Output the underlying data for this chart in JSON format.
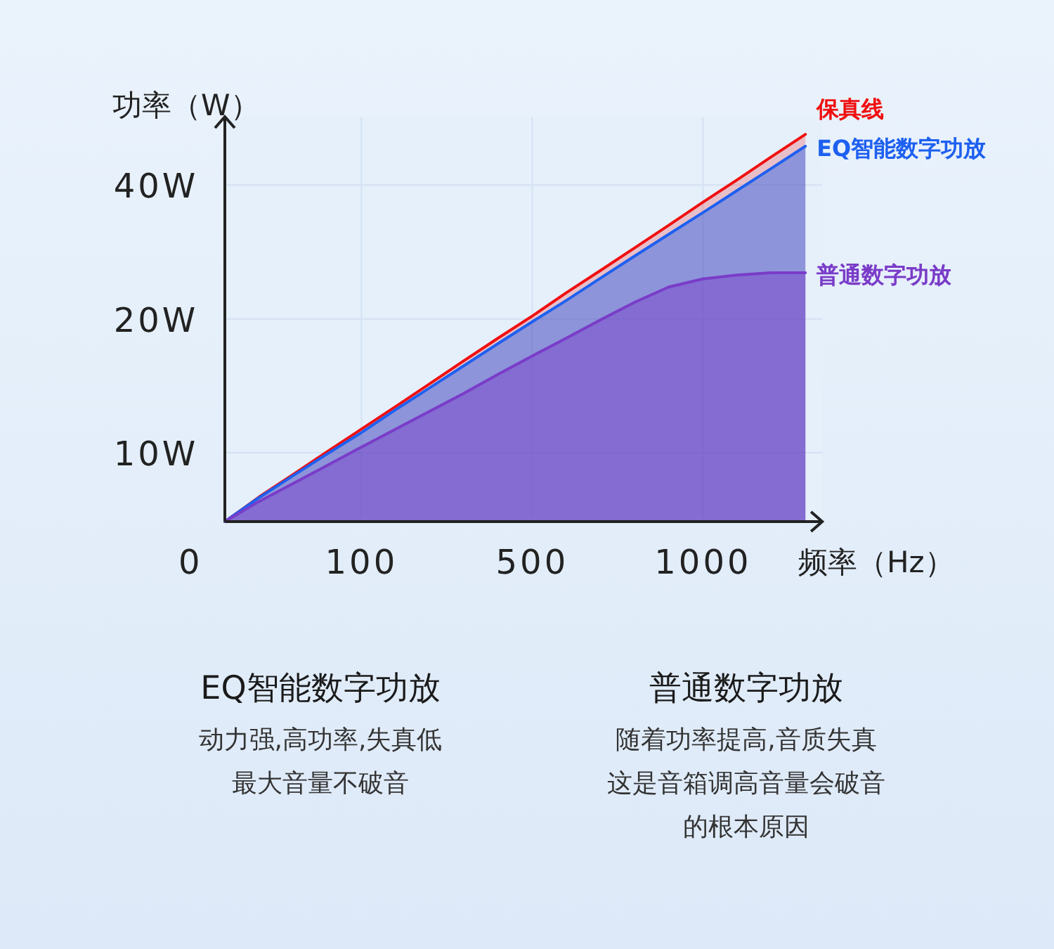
{
  "chart_data": {
    "type": "area",
    "xlabel": "频率（Hz）",
    "ylabel": "功率（W）",
    "categories": [
      "0",
      null,
      null,
      null,
      null,
      "100",
      null,
      null,
      null,
      null,
      "500",
      null,
      null,
      null,
      null,
      "1000",
      null,
      null,
      null
    ],
    "log": "y",
    "ylim": [
      7,
      57
    ],
    "yticks": [
      {
        "value": 10,
        "label": "10W"
      },
      {
        "value": 20,
        "label": "20W"
      },
      {
        "value": 40,
        "label": "40W"
      }
    ],
    "grid": true,
    "series": [
      {
        "name": "保真线",
        "color": "#f01010",
        "values": [
          null,
          7,
          7.95,
          8.94,
          10.06,
          11.3,
          12.7,
          14.3,
          16.1,
          18.1,
          20.3,
          22.9,
          25.7,
          28.9,
          32.5,
          36.6,
          41.1,
          46.3,
          52
        ]
      },
      {
        "name": "EQ智能数字功放",
        "color": "#1e60f0",
        "values": [
          null,
          7,
          7.92,
          8.88,
          9.94,
          11.1,
          12.5,
          14,
          15.7,
          17.6,
          19.7,
          22,
          24.7,
          27.7,
          31,
          34.7,
          38.9,
          43.6,
          48.9
        ]
      },
      {
        "name": "普通数字功放",
        "color": "#7a3cc8",
        "values": [
          null,
          7,
          7.77,
          8.53,
          9.37,
          10.3,
          11.3,
          12.4,
          13.6,
          15,
          16.5,
          18.1,
          19.9,
          21.8,
          23.6,
          24.6,
          25.1,
          25.4,
          25.4
        ]
      }
    ],
    "annotations": [
      "EQ智能数字功放",
      "动力强,高功率,失真低",
      "最大音量不破音",
      "普通数字功放",
      "随着功率提高,音质失真",
      "这是音箱调高音量会破音",
      "的根本原因"
    ]
  }
}
